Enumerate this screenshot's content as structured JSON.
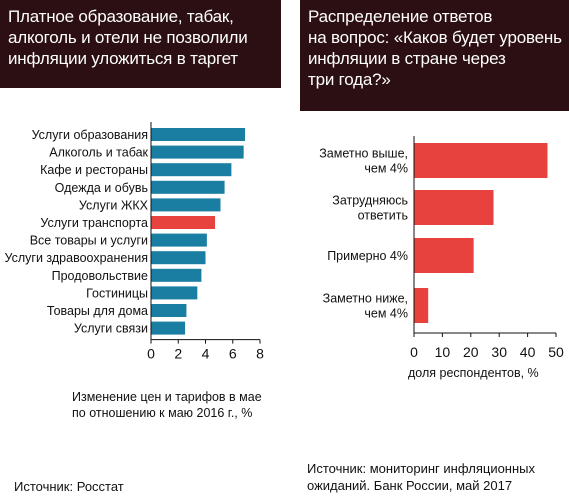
{
  "left": {
    "title_lines": [
      "Платное образование, табак,",
      "алкоголь и отели не позволили",
      "инфляции уложиться в таргет"
    ],
    "caption_lines": [
      "Изменение цен и тарифов в мае",
      "по отношению к маю 2016 г., %"
    ],
    "source": "Источник: Росстат"
  },
  "right": {
    "title_lines": [
      "Распределение ответов",
      "на вопрос: «Каков будет уровень",
      "инфляции в стране через",
      "три года?»"
    ],
    "source_lines": [
      "Источник: мониторинг инфляционных",
      "ожиданий. Банк России, май 2017"
    ]
  },
  "colors": {
    "header_bg": "#2c0f12",
    "bar_blue": "#1a7ea3",
    "bar_red": "#e8423f"
  },
  "chart_data": [
    {
      "type": "bar",
      "orientation": "horizontal",
      "categories": [
        "Услуги образования",
        "Алкоголь и табак",
        "Кафе и рестораны",
        "Одежда и обувь",
        "Услуги ЖКХ",
        "Услуги транспорта",
        "Все товары и услуги",
        "Услуги здравоохранения",
        "Продовольствие",
        "Гостиницы",
        "Товары для дома",
        "Услуги связи"
      ],
      "values": [
        6.9,
        6.8,
        5.9,
        5.4,
        5.1,
        4.7,
        4.1,
        4.0,
        3.7,
        3.4,
        2.6,
        2.5
      ],
      "highlight_index": 5,
      "xlabel": "Изменение цен и тарифов в мае по отношению к маю 2016 г., %",
      "xlim": [
        0,
        8
      ],
      "xticks": [
        0,
        2,
        4,
        6,
        8
      ],
      "grid": false
    },
    {
      "type": "bar",
      "orientation": "horizontal",
      "categories": [
        [
          "Заметно выше,",
          "чем 4%"
        ],
        [
          "Затрудняюсь",
          "ответить"
        ],
        [
          "Примерно 4%"
        ],
        [
          "Заметно ниже,",
          "чем 4%"
        ]
      ],
      "values": [
        47,
        28,
        21,
        5
      ],
      "xlabel": "доля респондентов, %",
      "xlim": [
        0,
        50
      ],
      "xticks": [
        0,
        10,
        20,
        30,
        40,
        50
      ],
      "grid": false
    }
  ]
}
